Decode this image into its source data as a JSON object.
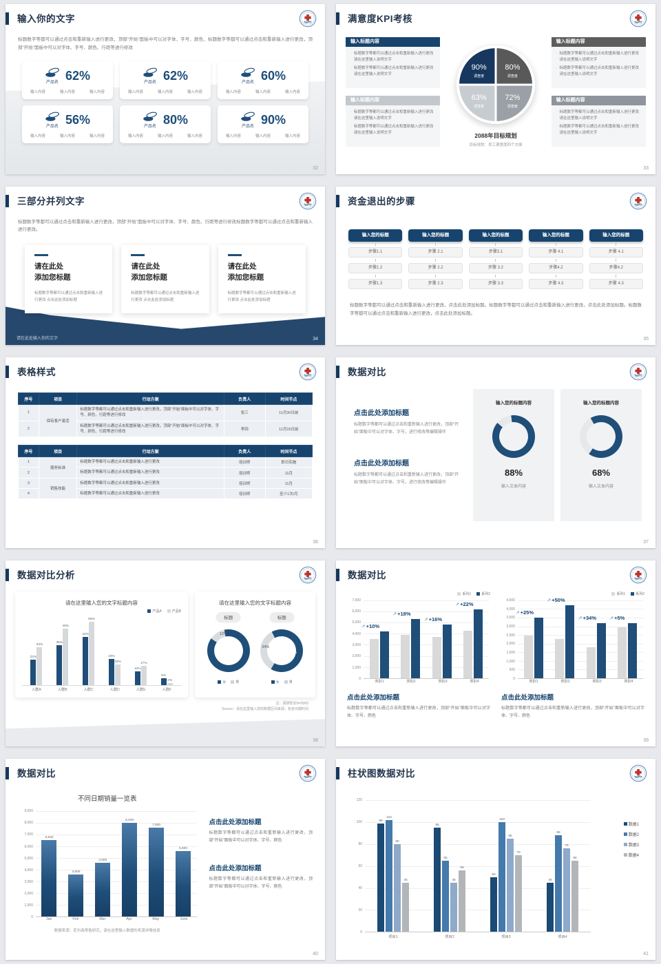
{
  "colors": {
    "navy": "#17446e",
    "deep": "#17375e",
    "blue": "#1f4e79",
    "bar_gray": "#d9d9d9",
    "series": [
      "#1b4a74",
      "#447aac",
      "#8ea9c9",
      "#b3b6b9"
    ]
  },
  "slides": {
    "s1": {
      "title": "输入你的文字",
      "page": "32",
      "intro": "标题数字等都可以通过点击和重新输入进行更改，顶部“开始”面板中可以对字体、字号、颜色、标题数字等都可以通过点击和重新输入进行更改，顶部“开始”面板中可以对字体、字号、颜色、行距等进行修改",
      "cards": [
        {
          "name": "产品名",
          "value": "62%",
          "items": [
            "输入内容",
            "输入内容",
            "输入内容"
          ]
        },
        {
          "name": "产品名",
          "value": "62%",
          "items": [
            "输入内容",
            "输入内容",
            "输入内容"
          ]
        },
        {
          "name": "产品名",
          "value": "60%",
          "items": [
            "输入内容",
            "输入内容",
            "输入内容"
          ]
        },
        {
          "name": "产品名",
          "value": "56%",
          "items": [
            "输入内容",
            "输入内容",
            "输入内容"
          ]
        },
        {
          "name": "产品名",
          "value": "80%",
          "items": [
            "输入内容",
            "输入内容",
            "输入内容"
          ]
        },
        {
          "name": "产品名",
          "value": "90%",
          "items": [
            "输入内容",
            "输入内容",
            "输入内容"
          ]
        }
      ]
    },
    "s2": {
      "title": "满意度KPI考核",
      "page": "33",
      "panel_title": "输入标题内容",
      "bullet": "标题数字等都可以通过点击和重新输入进行更改 请在这里输入说明文字",
      "panels": [
        {
          "header_color": "#17446e"
        },
        {
          "header_color": "#5d5d5d"
        },
        {
          "header_color": "#c3c8cd"
        },
        {
          "header_color": "#8e959c"
        }
      ],
      "pie": {
        "quadrants": [
          {
            "pos": "tl",
            "value": "90%",
            "label": "调查度",
            "color": "#17375e"
          },
          {
            "pos": "tr",
            "value": "80%",
            "label": "调查度",
            "color": "#595959"
          },
          {
            "pos": "bl",
            "value": "63%",
            "label": "调查度",
            "color": "#c7ccd1"
          },
          {
            "pos": "br",
            "value": "72%",
            "label": "调查度",
            "color": "#9aa0a6"
          }
        ],
        "caption": "2088年目标规划",
        "subcaption": "目标规划：员工满意度四个方面"
      }
    },
    "s3": {
      "title": "三部分并列文字",
      "page": "34",
      "intro": "标题数字等都可以通过点击和重新输入进行更改，顶部“开始”面板中可以对字体、字号、颜色、行距等进行修改标题数字等都可以通过点击和重新输入进行更改。",
      "cards": [
        {
          "heading": "请在此处\n添加您标题",
          "body": "标题数字等都可以通过点击和重新输入进行更改 点击此处添加标题"
        },
        {
          "heading": "请在此处\n添加您标题",
          "body": "标题数字等都可以通过点击和重新输入进行更改 点击此处添加标题"
        },
        {
          "heading": "请在此处\n添加您标题",
          "body": "标题数字等都可以通过点击和重新输入进行更改 点击此处添加标题"
        }
      ],
      "footer": "请在此处输入你的文字"
    },
    "s4": {
      "title": "资金退出的步骤",
      "page": "35",
      "col_header": "输入您的标题",
      "columns": [
        [
          "步骤1.1",
          "步骤1.2",
          "步骤1.3"
        ],
        [
          "步骤 2.1",
          "步骤 2.2",
          "步骤 2.3"
        ],
        [
          "步骤3.1",
          "步骤 3.2",
          "步骤 3.3"
        ],
        [
          "步骤 4.1",
          "步骤4.2",
          "步骤 4.3"
        ],
        [
          "步骤 4.1",
          "步骤4.2",
          "步骤 4.3"
        ]
      ],
      "para": "标题数字等都可以通过点击和重新输入进行更改，点击此处添加标题。标题数字等都可以通过点击和重新输入进行更改，点击此处添加标题。标题数字等都可以通过点击和重新输入进行更改，点击此处添加标题。"
    },
    "s5": {
      "title": "表格样式",
      "page": "36",
      "headers": [
        "序号",
        "项目",
        "行动方案",
        "负责人",
        "时间节点"
      ],
      "long_plan": "标题数字等都可以通过点击和重新输入进行更改，顶部“开始”面板中可以对字体、字号、颜色、行距等进行修改",
      "short_plan": "标题数字等都可以通过点击和重新输入进行更改",
      "table1": [
        {
          "no": "1",
          "item": "保有客户激活",
          "rowspan": 2,
          "owner": "张三",
          "time": "11月30日前"
        },
        {
          "no": "2",
          "owner": "李四",
          "time": "11月15日前"
        }
      ],
      "table2": [
        {
          "no": "1",
          "item": "服务标准",
          "rowspan": 2,
          "owner": "培训师",
          "time": "即日实施"
        },
        {
          "no": "2",
          "owner": "培训师",
          "time": "11月"
        },
        {
          "no": "3",
          "item": "销售技能",
          "rowspan": 2,
          "owner": "培训师",
          "time": "11月"
        },
        {
          "no": "4",
          "owner": "培训师",
          "time": "至少1次/月"
        }
      ]
    },
    "s6": {
      "title": "数据对比",
      "page": "37",
      "blocks": [
        {
          "heading": "点击此处添加标题",
          "body": "标题数字等都可以通过点击和重新输入进行更改，顶部“开始”面板中可以对字体、字号，进行修改等编辑操作"
        },
        {
          "heading": "点击此处添加标题",
          "body": "标题数字等都可以通过点击和重新输入进行更改，顶部“开始”面板中可以对字体、字号，进行修改等编辑操作"
        }
      ],
      "panels": [
        {
          "header": "输入您的标题内容",
          "percent": 88,
          "percent_label": "88%",
          "caption": "输入文本内容"
        },
        {
          "header": "输入您的标题内容",
          "percent": 68,
          "percent_label": "68%",
          "caption": "输入文本内容"
        }
      ]
    },
    "s7": {
      "title": "数据对比分析",
      "page": "38",
      "bar_chart": {
        "type": "bar",
        "title": "请在这里输入您的文字标题内容",
        "legend": [
          "产品A",
          "产品B"
        ],
        "categories": [
          "人群A",
          "人群B",
          "人群C",
          "人群D",
          "人群E",
          "人群F"
        ],
        "series": [
          {
            "name": "产品A",
            "values": [
              22,
              35,
              42,
              23,
              12,
              6
            ]
          },
          {
            "name": "产品B",
            "values": [
              33,
              49,
              55,
              18,
              17,
              2
            ]
          }
        ],
        "ymax": 60
      },
      "donut_chart": {
        "type": "pie",
        "title": "请在这里输入您的文字标题内容",
        "pill": "标题",
        "legend": [
          "女",
          "男"
        ],
        "donuts": [
          {
            "gray_label": "12%",
            "blue_label": "88%",
            "gray": 12,
            "blue": 88
          },
          {
            "gray_label": "34%",
            "blue_label": "66%",
            "gray": 34,
            "blue": 66
          }
        ]
      },
      "notes": [
        "注：调研样本N=5000",
        "Source：请在这里输入您的数据区间来源，包含日期时间"
      ]
    },
    "s8": {
      "title": "数据对比",
      "page": "39",
      "legend": [
        "系列1",
        "系列2"
      ],
      "heading": "点击此处添加标题",
      "body": "标题数字等都可以通过点击和重新输入进行更改，顶部“开始”面板中可以对字体、字号、颜色",
      "charts": [
        {
          "type": "bar",
          "ymax": 7000,
          "ticks": [
            "7,000",
            "6,000",
            "5,000",
            "4,000",
            "3,000",
            "2,000",
            "1,000",
            "0"
          ],
          "categories": [
            "类别1",
            "类别2",
            "类别3",
            "类别4"
          ],
          "series1": [
            3500,
            3900,
            3700,
            4300
          ],
          "series2": [
            4200,
            5300,
            4800,
            6200
          ],
          "annotations": [
            "+10%",
            "+18%",
            "+16%",
            "+22%"
          ]
        },
        {
          "type": "bar",
          "ymax": 4500,
          "ticks": [
            "4,500",
            "4,000",
            "3,500",
            "3,000",
            "2,500",
            "2,000",
            "1,500",
            "1,000",
            "500",
            "0"
          ],
          "categories": [
            "类别1",
            "类别2",
            "类别3",
            "类别4"
          ],
          "series1": [
            2450,
            2250,
            1800,
            2950
          ],
          "series2": [
            3500,
            4200,
            3200,
            3200
          ],
          "annotations": [
            "+25%",
            "+50%",
            "+34%",
            "+5%"
          ]
        }
      ]
    },
    "s9": {
      "title": "数据对比",
      "page": "40",
      "chart": {
        "type": "bar",
        "title": "不同日期销量一览表",
        "ymax": 9000,
        "ticks": [
          "9,000",
          "8,000",
          "7,000",
          "6,000",
          "5,000",
          "4,000",
          "3,000",
          "2,000",
          "1,000",
          "0"
        ],
        "categories": [
          "Jan",
          "Feb",
          "Mar",
          "Apr",
          "May",
          "June"
        ],
        "values": [
          6520,
          3600,
          4580,
          8000,
          7600,
          5600
        ],
        "labels": [
          "6,520",
          "3,600",
          "4,580",
          "8,000",
          "7,600",
          "5,600"
        ],
        "source": "数据来源：尼尔森零售研究，请在这里输入数据的来源详情信息"
      },
      "blocks": [
        {
          "heading": "点击此处添加标题",
          "body": "标题数字等都可以通过点击和重新输入进行更改，顶部“开始”面板中可以对字体、字号、颜色"
        },
        {
          "heading": "点击此处添加标题",
          "body": "标题数字等都可以通过点击和重新输入进行更改，顶部“开始”面板中可以对字体、字号、颜色"
        }
      ]
    },
    "s10": {
      "title": "柱状图数据对比",
      "page": "41",
      "chart": {
        "type": "bar",
        "ymax": 120,
        "ticks": [
          "120",
          "100",
          "80",
          "60",
          "40",
          "20",
          "0"
        ],
        "categories": [
          "项目1",
          "项目2",
          "项目3",
          "项目4"
        ],
        "series": [
          {
            "name": "数据1",
            "color": "#1b4a74",
            "values": [
              99,
              95,
              50,
              45
            ]
          },
          {
            "name": "数据2",
            "color": "#447aac",
            "values": [
              102,
              65,
              100,
              88
            ]
          },
          {
            "name": "数据3",
            "color": "#8ea9c9",
            "values": [
              80,
              45,
              85,
              76
            ]
          },
          {
            "name": "数据4",
            "color": "#b3b6b9",
            "values": [
              45,
              56,
              70,
              65
            ]
          }
        ]
      }
    }
  }
}
